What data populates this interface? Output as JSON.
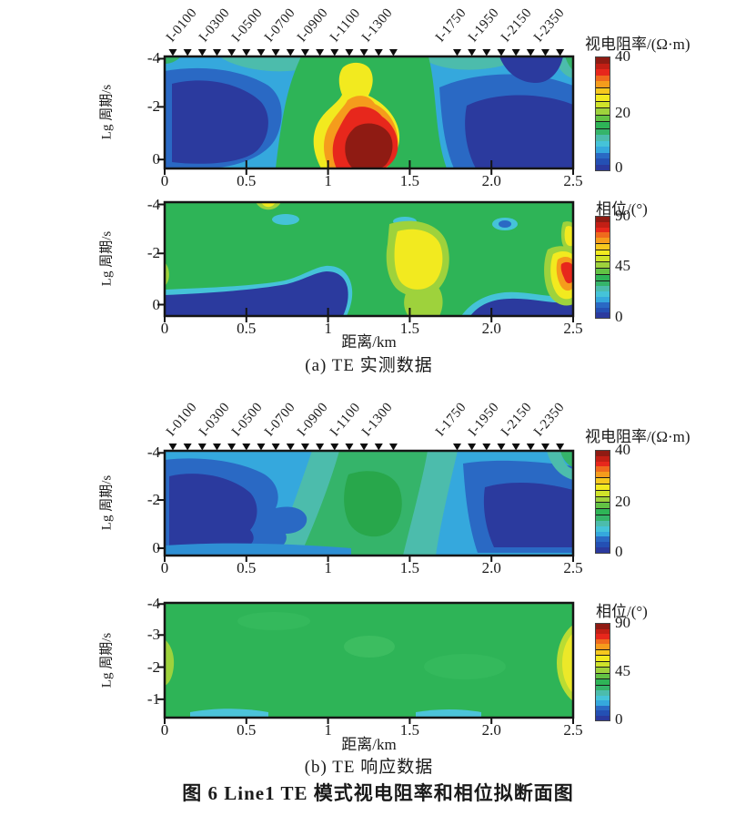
{
  "figure": {
    "xlabel": "距离/km",
    "ylabel": "Lg 周期/s",
    "caption_a": "(a) TE 实测数据",
    "caption_b": "(b) TE 响应数据",
    "title": "图 6  Line1 TE 模式视电阻率和相位拟断面图"
  },
  "axes": {
    "x_range_km": [
      0,
      2.5
    ],
    "x_ticks": [
      {
        "label": "0",
        "km": 0
      },
      {
        "label": "0.5",
        "km": 0.5
      },
      {
        "label": "1",
        "km": 1
      },
      {
        "label": "1.5",
        "km": 1.5
      },
      {
        "label": "2.0",
        "km": 2
      },
      {
        "label": "2.5",
        "km": 2.5
      }
    ]
  },
  "stations": {
    "labels": [
      "I-0100",
      "I-0300",
      "I-0500",
      "I-0700",
      "I-0900",
      "I-1100",
      "I-1300",
      "I-1750",
      "I-1950",
      "I-2150",
      "I-2350"
    ],
    "positions_km": [
      0.1,
      0.3,
      0.5,
      0.7,
      0.9,
      1.1,
      1.3,
      1.75,
      1.95,
      2.15,
      2.35
    ],
    "marker_positions_km": [
      0.05,
      0.14,
      0.23,
      0.32,
      0.41,
      0.5,
      0.59,
      0.68,
      0.77,
      0.86,
      0.95,
      1.04,
      1.13,
      1.22,
      1.31,
      1.4,
      1.79,
      1.88,
      1.97,
      2.06,
      2.15,
      2.24,
      2.33,
      2.42
    ]
  },
  "colormap": [
    "#2b3a9e",
    "#2450b4",
    "#2a69c4",
    "#35a8dd",
    "#45c3d8",
    "#4cbcac",
    "#35b46a",
    "#2eb457",
    "#62c244",
    "#9ed23c",
    "#cfe32a",
    "#f2ea1f",
    "#f6c81e",
    "#f59c1c",
    "#ef6a1d",
    "#e7271c",
    "#c21f15",
    "#8f1b13"
  ],
  "panels": [
    {
      "name": "a-resistivity",
      "y_ticks": [
        {
          "label": "-4",
          "pct": 2
        },
        {
          "label": "-2",
          "pct": 45
        },
        {
          "label": "0",
          "pct": 92
        }
      ],
      "colorbar": {
        "title": "视电阻率/(Ω·m)",
        "ticks": [
          {
            "label": "40",
            "pct": 0
          },
          {
            "label": "20",
            "pct": 49
          },
          {
            "label": "0",
            "pct": 97
          }
        ]
      }
    },
    {
      "name": "a-phase",
      "y_ticks": [
        {
          "label": "-4",
          "pct": 2
        },
        {
          "label": "-2",
          "pct": 45
        },
        {
          "label": "0",
          "pct": 90
        }
      ],
      "colorbar": {
        "title": "相位/(°)",
        "ticks": [
          {
            "label": "90",
            "pct": 0
          },
          {
            "label": "45",
            "pct": 49
          },
          {
            "label": "0",
            "pct": 98
          }
        ]
      }
    },
    {
      "name": "b-resistivity",
      "y_ticks": [
        {
          "label": "-4",
          "pct": 2
        },
        {
          "label": "-2",
          "pct": 47
        },
        {
          "label": "0",
          "pct": 93
        }
      ],
      "colorbar": {
        "title": "视电阻率/(Ω·m)",
        "ticks": [
          {
            "label": "40",
            "pct": 0
          },
          {
            "label": "20",
            "pct": 50
          },
          {
            "label": "0",
            "pct": 98
          }
        ]
      }
    },
    {
      "name": "b-phase",
      "y_ticks": [
        {
          "label": "-4",
          "pct": 1
        },
        {
          "label": "-3",
          "pct": 28
        },
        {
          "label": "-2",
          "pct": 56
        },
        {
          "label": "-1",
          "pct": 84
        }
      ],
      "colorbar": {
        "title": "相位/(°)",
        "ticks": [
          {
            "label": "90",
            "pct": 0
          },
          {
            "label": "45",
            "pct": 49
          },
          {
            "label": "0",
            "pct": 98
          }
        ]
      }
    }
  ],
  "chart_data": [
    {
      "type": "heatmap",
      "title": "(a) TE 实测数据 — 视电阻率拟断面",
      "xlabel": "距离/km",
      "ylabel": "Lg 周期/s",
      "x_range_km": [
        0,
        2.5
      ],
      "x_tick_values": [
        0,
        0.5,
        1,
        1.5,
        2.0,
        2.5
      ],
      "y_tick_values": [
        -4,
        -2,
        0
      ],
      "colorbar_label": "视电阻率/(Ω·m)",
      "colorbar_range": [
        0,
        40
      ],
      "colorbar_ticks": [
        0,
        20,
        40
      ],
      "station_labels": [
        "I-0100",
        "I-0300",
        "I-0500",
        "I-0700",
        "I-0900",
        "I-1100",
        "I-1300",
        "I-1750",
        "I-1950",
        "I-2150",
        "I-2350"
      ],
      "x_km": [
        0,
        0.25,
        0.5,
        0.75,
        1.0,
        1.25,
        1.5,
        1.75,
        2.0,
        2.25,
        2.5
      ],
      "lg_period_rows": [
        -4,
        -3,
        -2,
        -1,
        0
      ],
      "values": [
        [
          14,
          10,
          12,
          16,
          20,
          22,
          20,
          16,
          12,
          10,
          14
        ],
        [
          8,
          5,
          7,
          12,
          22,
          28,
          20,
          10,
          6,
          5,
          10
        ],
        [
          5,
          4,
          6,
          14,
          26,
          32,
          22,
          12,
          5,
          4,
          8
        ],
        [
          4,
          4,
          6,
          16,
          32,
          38,
          28,
          14,
          5,
          4,
          6
        ],
        [
          4,
          4,
          7,
          18,
          36,
          40,
          34,
          16,
          6,
          4,
          5
        ]
      ],
      "features": [
        "高阻核(≥40 Ω·m)位于 x≈1.0–1.4 km、lg T≈-1–0",
        "两侧 x<0.7 与 x>1.6 为低阻(<8 Ω·m)"
      ]
    },
    {
      "type": "heatmap",
      "title": "(a) TE 实测数据 — 相位拟断面",
      "xlabel": "距离/km",
      "ylabel": "Lg 周期/s",
      "x_range_km": [
        0,
        2.5
      ],
      "x_tick_values": [
        0,
        0.5,
        1,
        1.5,
        2.0,
        2.5
      ],
      "y_tick_values": [
        -4,
        -2,
        0
      ],
      "colorbar_label": "相位/(°)",
      "colorbar_range": [
        0,
        90
      ],
      "colorbar_ticks": [
        0,
        45,
        90
      ],
      "x_km": [
        0,
        0.25,
        0.5,
        0.75,
        1.0,
        1.25,
        1.5,
        1.75,
        2.0,
        2.25,
        2.5
      ],
      "lg_period_rows": [
        -4,
        -3,
        -2,
        -1,
        0
      ],
      "values": [
        [
          45,
          46,
          50,
          46,
          45,
          45,
          45,
          45,
          45,
          45,
          45
        ],
        [
          45,
          45,
          38,
          45,
          45,
          38,
          45,
          45,
          28,
          45,
          52
        ],
        [
          46,
          45,
          45,
          45,
          45,
          48,
          62,
          48,
          45,
          45,
          55
        ],
        [
          44,
          45,
          45,
          42,
          20,
          50,
          60,
          46,
          45,
          48,
          72
        ],
        [
          12,
          10,
          10,
          12,
          15,
          42,
          50,
          45,
          18,
          12,
          20
        ]
      ],
      "features": [
        "底部 x 0–1.2 km 低相位(<15°)带",
        "x≈1.5 km 处黄色高相位(≈60°)团",
        "右边缘 lg T≈-1 处红色高相位(≈75°)"
      ]
    },
    {
      "type": "heatmap",
      "title": "(b) TE 响应数据 — 视电阻率拟断面",
      "xlabel": "距离/km",
      "ylabel": "Lg 周期/s",
      "x_range_km": [
        0,
        2.5
      ],
      "x_tick_values": [
        0,
        0.5,
        1,
        1.5,
        2.0,
        2.5
      ],
      "y_tick_values": [
        -4,
        -2,
        0
      ],
      "colorbar_label": "视电阻率/(Ω·m)",
      "colorbar_range": [
        0,
        40
      ],
      "colorbar_ticks": [
        0,
        20,
        40
      ],
      "station_labels": [
        "I-0100",
        "I-0300",
        "I-0500",
        "I-0700",
        "I-0900",
        "I-1100",
        "I-1300",
        "I-1750",
        "I-1950",
        "I-2150",
        "I-2350"
      ],
      "x_km": [
        0,
        0.25,
        0.5,
        0.75,
        1.0,
        1.25,
        1.5,
        1.75,
        2.0,
        2.25,
        2.5
      ],
      "lg_period_rows": [
        -4,
        -3,
        -2,
        -1,
        0
      ],
      "values": [
        [
          12,
          9,
          9,
          13,
          16,
          18,
          18,
          14,
          9,
          8,
          16
        ],
        [
          7,
          5,
          6,
          11,
          14,
          20,
          18,
          12,
          6,
          5,
          11
        ],
        [
          5,
          4,
          6,
          9,
          15,
          22,
          20,
          13,
          5,
          4,
          7
        ],
        [
          4,
          4,
          5,
          9,
          14,
          22,
          19,
          12,
          5,
          4,
          5
        ],
        [
          5,
          5,
          6,
          9,
          12,
          16,
          15,
          10,
          6,
          5,
          5
        ]
      ],
      "features": [
        "中部 x≈1.1–1.6 km 中阻(≈20 Ω·m)绿色带",
        "两侧深蓝低阻(<6 Ω·m)，无高阻红色异常"
      ]
    },
    {
      "type": "heatmap",
      "title": "(b) TE 响应数据 — 相位拟断面",
      "xlabel": "距离/km",
      "ylabel": "Lg 周期/s",
      "x_range_km": [
        0,
        2.5
      ],
      "x_tick_values": [
        0,
        0.5,
        1,
        1.5,
        2.0,
        2.5
      ],
      "y_tick_values": [
        -4,
        -3,
        -2,
        -1
      ],
      "colorbar_label": "相位/(°)",
      "colorbar_range": [
        0,
        90
      ],
      "colorbar_ticks": [
        0,
        45,
        90
      ],
      "x_km": [
        0,
        0.25,
        0.5,
        0.75,
        1.0,
        1.25,
        1.5,
        1.75,
        2.0,
        2.25,
        2.5
      ],
      "lg_period_rows": [
        -4,
        -3,
        -2,
        -1
      ],
      "values": [
        [
          46,
          46,
          46,
          46,
          46,
          47,
          46,
          46,
          46,
          46,
          46
        ],
        [
          47,
          46,
          46,
          46,
          47,
          47,
          46,
          46,
          46,
          46,
          48
        ],
        [
          52,
          47,
          46,
          46,
          46,
          46,
          46,
          46,
          46,
          47,
          55
        ],
        [
          48,
          46,
          46,
          47,
          46,
          46,
          46,
          47,
          46,
          47,
          58
        ]
      ],
      "features": [
        "整体均匀绿色(≈46°)",
        "右边缘 lg T≈-1.5 黄色(≈58°)",
        "底边两段浅青色(≈40°)"
      ]
    }
  ]
}
